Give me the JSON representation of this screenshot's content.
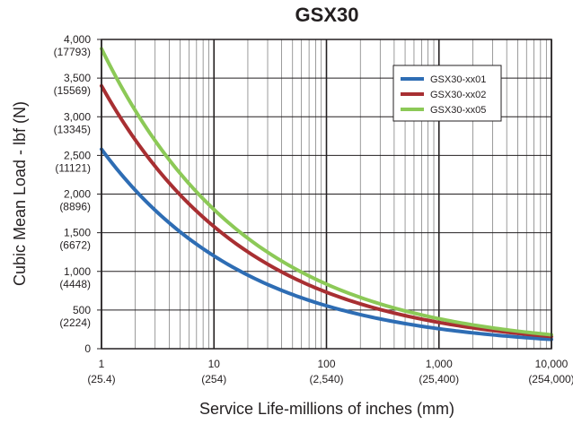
{
  "chart_data": {
    "type": "line",
    "title": "GSX30",
    "xlabel": "Service Life-millions of inches (mm)",
    "ylabel": "Cubic Mean Load - lbf (N)",
    "x_scale": "log",
    "xlim": [
      1,
      10000
    ],
    "ylim": [
      0,
      4000
    ],
    "grid": true,
    "legend_position": "top-right",
    "x_ticks": [
      {
        "value": 1,
        "label": "1",
        "sublabel": "(25.4)"
      },
      {
        "value": 10,
        "label": "10",
        "sublabel": "(254)"
      },
      {
        "value": 100,
        "label": "100",
        "sublabel": "(2,540)"
      },
      {
        "value": 1000,
        "label": "1,000",
        "sublabel": "(25,400)"
      },
      {
        "value": 10000,
        "label": "10,000",
        "sublabel": "(254,000)"
      }
    ],
    "y_ticks": [
      {
        "value": 0,
        "label": "0",
        "sublabel": ""
      },
      {
        "value": 500,
        "label": "500",
        "sublabel": "(2224)"
      },
      {
        "value": 1000,
        "label": "1,000",
        "sublabel": "(4448)"
      },
      {
        "value": 1500,
        "label": "1,500",
        "sublabel": "(6672)"
      },
      {
        "value": 2000,
        "label": "2,000",
        "sublabel": "(8896)"
      },
      {
        "value": 2500,
        "label": "2,500",
        "sublabel": "(11121)"
      },
      {
        "value": 3000,
        "label": "3,000",
        "sublabel": "(13345)"
      },
      {
        "value": 3500,
        "label": "3,500",
        "sublabel": "(15569)"
      },
      {
        "value": 4000,
        "label": "4,000",
        "sublabel": "(17793)"
      }
    ],
    "series": [
      {
        "name": "GSX30-xx01",
        "color": "#2e6db4",
        "x": [
          1,
          10,
          100,
          1000,
          10000
        ],
        "y": [
          2580,
          1200,
          555,
          258,
          120
        ]
      },
      {
        "name": "GSX30-xx02",
        "color": "#a82f32",
        "x": [
          1,
          10,
          100,
          1000,
          10000
        ],
        "y": [
          3400,
          1580,
          730,
          340,
          158
        ]
      },
      {
        "name": "GSX30-xx05",
        "color": "#8cc957",
        "x": [
          1,
          10,
          100,
          1000,
          10000
        ],
        "y": [
          3880,
          1800,
          835,
          388,
          180
        ]
      }
    ]
  }
}
